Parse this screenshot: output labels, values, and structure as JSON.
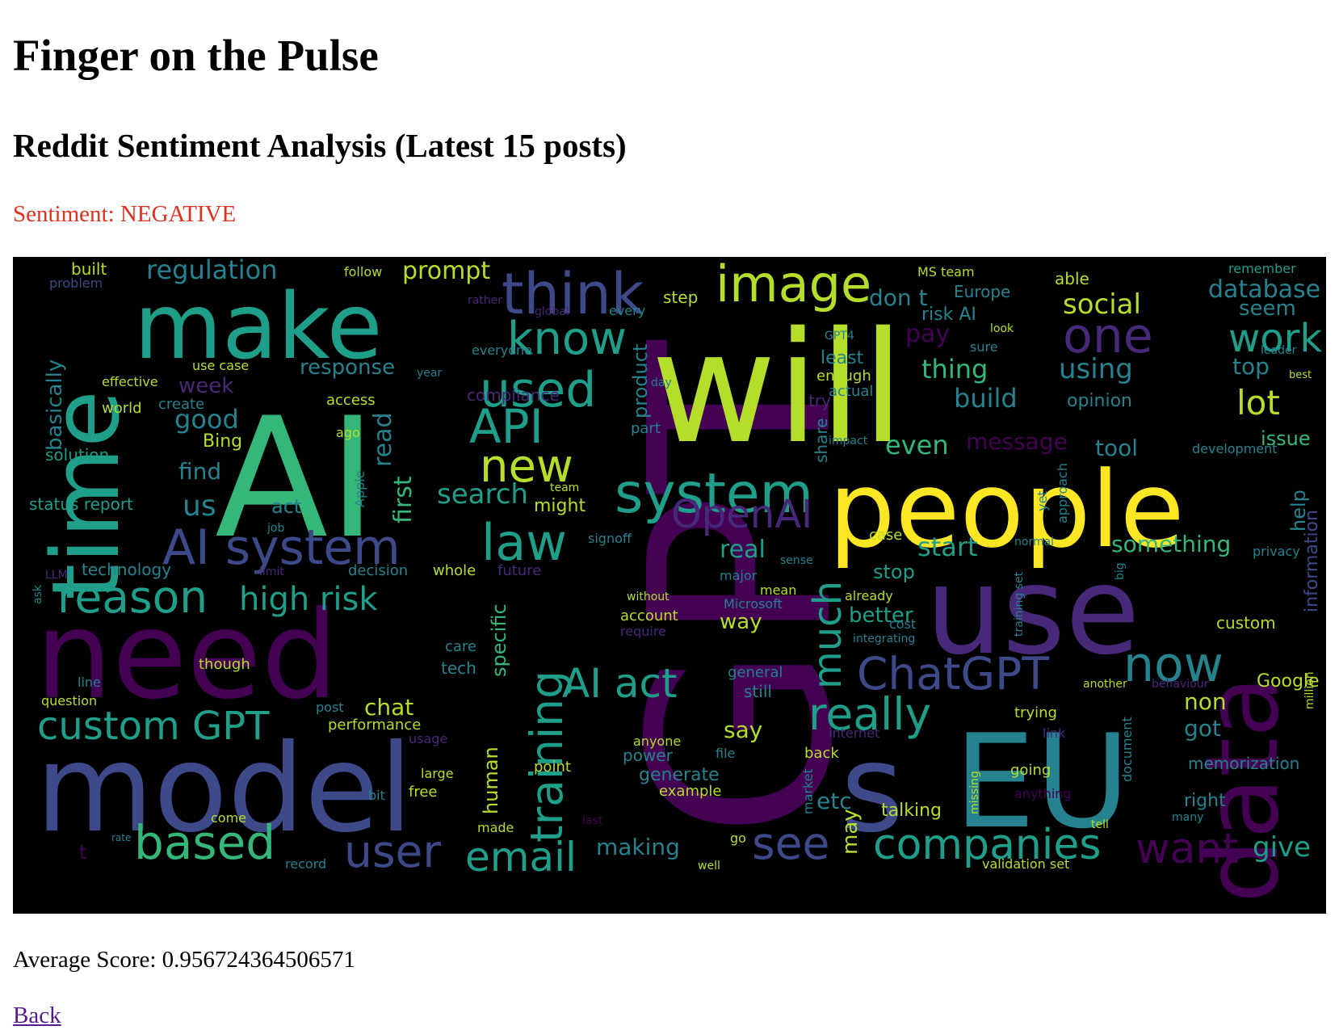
{
  "page": {
    "title": "Finger on the Pulse",
    "subtitle": "Reddit Sentiment Analysis (Latest 15 posts)",
    "sentiment_label": "Sentiment: NEGATIVE",
    "sentiment_color": "#e0301e",
    "average_score": "Average Score: 0.956724364506571",
    "back_link": "Back",
    "link_color": "#551a8b"
  },
  "wordcloud": {
    "background": "#000000",
    "palette": [
      "#440154",
      "#482878",
      "#3e4989",
      "#31688e",
      "#26828e",
      "#1f9e89",
      "#35b779",
      "#6ece58",
      "#b5de2b",
      "#fde725"
    ],
    "words": [
      "GPT",
      "will",
      "AI",
      "people",
      "use",
      "need",
      "model",
      "make",
      "time",
      "EU",
      "data",
      "s",
      "think",
      "image",
      "know",
      "one",
      "work",
      "used",
      "system",
      "law",
      "new",
      "API",
      "AI system",
      "reason",
      "high risk",
      "custom GPT",
      "based",
      "user",
      "email",
      "see",
      "companies",
      "want",
      "ChatGPT",
      "now",
      "really",
      "training",
      "AI act",
      "much",
      "OpenAI",
      "social",
      "lot",
      "regulation",
      "prompt",
      "database",
      "seem",
      "response",
      "week",
      "good",
      "us",
      "find",
      "search",
      "first",
      "read",
      "basically",
      "solution",
      "status report",
      "act",
      "signoff",
      "real",
      "start",
      "something",
      "information",
      "help",
      "issue",
      "tool",
      "message",
      "even",
      "build",
      "thing",
      "using",
      "top",
      "opinion",
      "pay",
      "don t",
      "risk AI",
      "Europe",
      "MS team",
      "able",
      "remember",
      "leader",
      "best",
      "product",
      "compliance",
      "access",
      "Bing",
      "world",
      "create",
      "effective",
      "use case",
      "year",
      "day",
      "everyone",
      "look",
      "sure",
      "least",
      "enough",
      "actual",
      "try",
      "share",
      "impact",
      "development",
      "approach",
      "yet",
      "Apple",
      "team",
      "might",
      "job",
      "part",
      "ago",
      "built",
      "problem",
      "follow",
      "rather",
      "global",
      "every",
      "step",
      "GPT4",
      "privacy",
      "normal",
      "case",
      "stop",
      "sense",
      "technology",
      "LLM",
      "limit",
      "decision",
      "whole",
      "future",
      "major",
      "mean",
      "Microsoft",
      "already",
      "without",
      "account",
      "require",
      "better",
      "way",
      "integrating",
      "cost",
      "training set",
      "custom",
      "big",
      "ask",
      "care",
      "tech",
      "specific",
      "general",
      "still",
      "though",
      "line",
      "another",
      "behaviour",
      "Google",
      "million",
      "question",
      "post",
      "chat",
      "performance",
      "say",
      "internet",
      "trying",
      "link",
      "non",
      "got",
      "usage",
      "anyone",
      "power",
      "file",
      "back",
      "memorization",
      "large",
      "point",
      "generate",
      "example",
      "human",
      "going",
      "document",
      "missing",
      "bit",
      "free",
      "market",
      "etc",
      "anything",
      "right",
      "many",
      "come",
      "last",
      "talking",
      "tell",
      "made",
      "rate",
      "t",
      "go",
      "may",
      "making",
      "record",
      "well",
      "validation set",
      "give"
    ]
  }
}
